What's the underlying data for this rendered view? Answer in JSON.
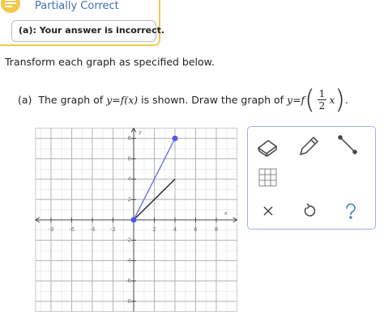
{
  "status": {
    "title": "Partially Correct",
    "feedback": "(a): Your answer is incorrect."
  },
  "instruction": "Transform each graph as specified below.",
  "question": {
    "label": "(a)",
    "text1": "The graph of",
    "given": "y=f",
    "given_arg": "(x)",
    "text2": "is shown. Draw the graph of",
    "target": "y=f",
    "open": "(",
    "numerator": "1",
    "denominator": "2",
    "variable": "x",
    "close": ")",
    "end": "."
  },
  "graph": {
    "x_label": "x",
    "y_label": "y",
    "xlim": [
      -9.5,
      10
    ],
    "ylim": [
      -9,
      9
    ],
    "xticks": [
      -8,
      -6,
      -4,
      -2,
      2,
      4,
      6,
      8
    ],
    "yticks": [
      8,
      6,
      4,
      2,
      -2,
      -4,
      -6,
      -8
    ],
    "given_line": {
      "color": "#222222",
      "x": [
        0,
        4
      ],
      "y": [
        0,
        4
      ]
    },
    "drawn_line": {
      "color": "#6f6ff0",
      "point_color": "#5656e8",
      "x": [
        0,
        4
      ],
      "y": [
        0,
        8
      ]
    }
  }
}
